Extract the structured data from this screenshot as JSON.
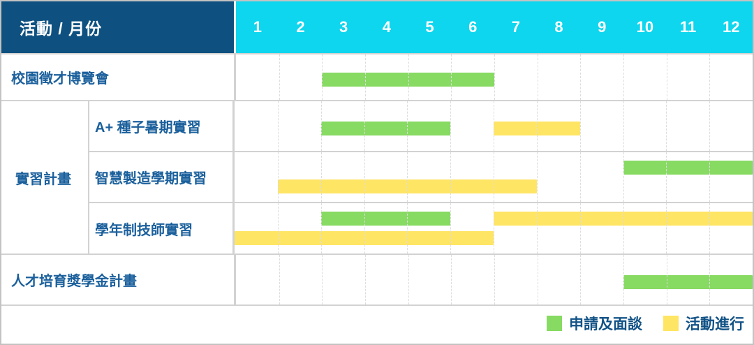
{
  "colors": {
    "header_bg": "#0e5180",
    "months_bg": "#0ed6ee",
    "header_text": "#ffffff",
    "label_text": "#1b609c",
    "legend_text": "#115286",
    "apply": "#87da62",
    "activity": "#ffe564",
    "border_outer": "#c3c3c3",
    "border_solid": "#d2d2d2"
  },
  "chart_data": {
    "type": "bar",
    "subtype": "gantt",
    "title": "活動 / 月份",
    "x_categories": [
      "1",
      "2",
      "3",
      "4",
      "5",
      "6",
      "7",
      "8",
      "9",
      "10",
      "11",
      "12"
    ],
    "x_range": [
      1,
      12
    ],
    "grid": "dashed-vertical-month-separators",
    "legend_position": "bottom-right",
    "rows": [
      {
        "group": "",
        "label": "校園徵才博覽會",
        "bars": [
          {
            "type": "apply",
            "start_month": 3,
            "end_month": 6,
            "track": "center"
          }
        ]
      },
      {
        "group": "實習計畫",
        "label": "A+ 種子暑期實習",
        "bars": [
          {
            "type": "apply",
            "start_month": 3,
            "end_month": 5,
            "track": "center"
          },
          {
            "type": "activity",
            "start_month": 7,
            "end_month": 8,
            "track": "center"
          }
        ]
      },
      {
        "group": "實習計畫",
        "label": "智慧製造學期實習",
        "bars": [
          {
            "type": "apply",
            "start_month": 10,
            "end_month": 12,
            "track": "top"
          },
          {
            "type": "activity",
            "start_month": 2,
            "end_month": 7,
            "track": "bottom"
          }
        ]
      },
      {
        "group": "實習計畫",
        "label": "學年制技師實習",
        "bars": [
          {
            "type": "apply",
            "start_month": 3,
            "end_month": 5,
            "track": "top"
          },
          {
            "type": "activity",
            "start_month": 7,
            "end_month": 12,
            "track": "top"
          },
          {
            "type": "activity",
            "start_month": 1,
            "end_month": 6,
            "track": "bottom"
          }
        ]
      },
      {
        "group": "",
        "label": "人才培育獎學金計畫",
        "bars": [
          {
            "type": "apply",
            "start_month": 10,
            "end_month": 12,
            "track": "center"
          }
        ]
      }
    ],
    "legend": [
      {
        "label": "申請及面談",
        "type": "apply",
        "color": "#87da62"
      },
      {
        "label": "活動進行",
        "type": "activity",
        "color": "#ffe564"
      }
    ]
  }
}
